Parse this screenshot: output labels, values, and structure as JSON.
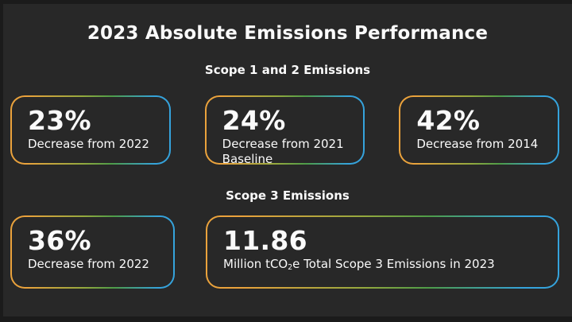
{
  "slide": {
    "title": "2023 Absolute Emissions Performance",
    "colors": {
      "background": "#282828",
      "frame": "#1b1b1b",
      "text": "#fafafa",
      "gradient_start": "#EAA23C",
      "gradient_mid": "#4E9C48",
      "gradient_end": "#35A3DC"
    },
    "sections": [
      {
        "heading": "Scope 1 and 2 Emissions",
        "cards": [
          {
            "value": "23%",
            "label": "Decrease from 2022"
          },
          {
            "value": "24%",
            "label": "Decrease from 2021 Baseline"
          },
          {
            "value": "42%",
            "label": "Decrease from 2014"
          }
        ]
      },
      {
        "heading": "Scope 3 Emissions",
        "cards": [
          {
            "value": "36%",
            "label": "Decrease from 2022"
          },
          {
            "value": "11.86",
            "label_pre": "Million tCO",
            "label_sub": "2",
            "label_post": "e Total Scope 3 Emissions in 2023"
          }
        ]
      }
    ]
  }
}
